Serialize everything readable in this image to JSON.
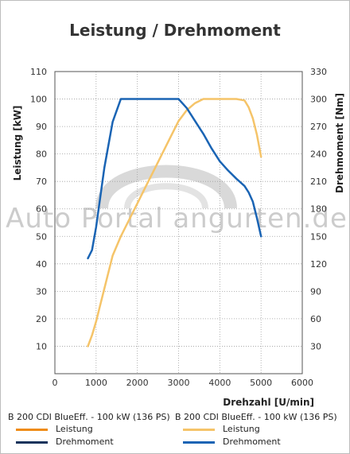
{
  "chart_data": {
    "type": "line",
    "title": "Leistung / Drehmoment",
    "xlabel": "Drehzahl [U/min]",
    "ylabel_left": "Leistung [kW]",
    "ylabel_right": "Drehmoment [Nm]",
    "xlim": [
      0,
      6000
    ],
    "ylim_left": [
      0,
      110
    ],
    "ylim_right": [
      0,
      330
    ],
    "x_ticks": [
      "0",
      "1000",
      "2000",
      "3000",
      "4000",
      "5000",
      "6000"
    ],
    "y_ticks_left": [
      "10",
      "20",
      "30",
      "40",
      "50",
      "60",
      "70",
      "80",
      "90",
      "100",
      "110"
    ],
    "y_ticks_right": [
      "30",
      "60",
      "90",
      "120",
      "150",
      "180",
      "210",
      "240",
      "270",
      "300",
      "330"
    ],
    "grid": true,
    "watermark": "Auto Portal angurten.de",
    "series": [
      {
        "name": "Leistung",
        "group": "B 200 CDI BlueEff. - 100 kW (136 PS)",
        "axis": "left",
        "color": "#f5c469",
        "points": [
          [
            800,
            10
          ],
          [
            900,
            14
          ],
          [
            1000,
            19
          ],
          [
            1200,
            31
          ],
          [
            1400,
            43
          ],
          [
            1600,
            50
          ],
          [
            1800,
            56
          ],
          [
            2000,
            62
          ],
          [
            2200,
            68
          ],
          [
            2400,
            74
          ],
          [
            2600,
            80
          ],
          [
            2800,
            86
          ],
          [
            3000,
            92
          ],
          [
            3200,
            96
          ],
          [
            3400,
            98.5
          ],
          [
            3600,
            100
          ],
          [
            3800,
            100
          ],
          [
            4000,
            100
          ],
          [
            4200,
            100
          ],
          [
            4400,
            100
          ],
          [
            4600,
            99.5
          ],
          [
            4700,
            97
          ],
          [
            4800,
            93
          ],
          [
            4900,
            87
          ],
          [
            5000,
            79
          ]
        ]
      },
      {
        "name": "Drehmoment",
        "group": "B 200 CDI BlueEff. - 100 kW (136 PS)",
        "axis": "right",
        "color": "#1a64b4",
        "points": [
          [
            800,
            126
          ],
          [
            900,
            135
          ],
          [
            1000,
            160
          ],
          [
            1200,
            225
          ],
          [
            1400,
            275
          ],
          [
            1600,
            300
          ],
          [
            1800,
            300
          ],
          [
            2000,
            300
          ],
          [
            2200,
            300
          ],
          [
            2400,
            300
          ],
          [
            2600,
            300
          ],
          [
            2800,
            300
          ],
          [
            3000,
            300
          ],
          [
            3200,
            290
          ],
          [
            3400,
            276
          ],
          [
            3600,
            262
          ],
          [
            3800,
            246
          ],
          [
            4000,
            232
          ],
          [
            4200,
            222
          ],
          [
            4400,
            213
          ],
          [
            4600,
            205
          ],
          [
            4700,
            198
          ],
          [
            4800,
            188
          ],
          [
            4900,
            170
          ],
          [
            5000,
            150
          ]
        ]
      }
    ]
  },
  "legend": {
    "groups": [
      {
        "header": "B 200 CDI BlueEff. - 100 kW (136 PS)",
        "items": [
          {
            "label": "Leistung",
            "color": "#ef8c18"
          },
          {
            "label": "Drehmoment",
            "color": "#15335c"
          }
        ]
      },
      {
        "header": "B 200 CDI BlueEff. - 100 kW (136 PS)",
        "items": [
          {
            "label": "Leistung",
            "color": "#f5c469"
          },
          {
            "label": "Drehmoment",
            "color": "#1a64b4"
          }
        ]
      }
    ]
  }
}
